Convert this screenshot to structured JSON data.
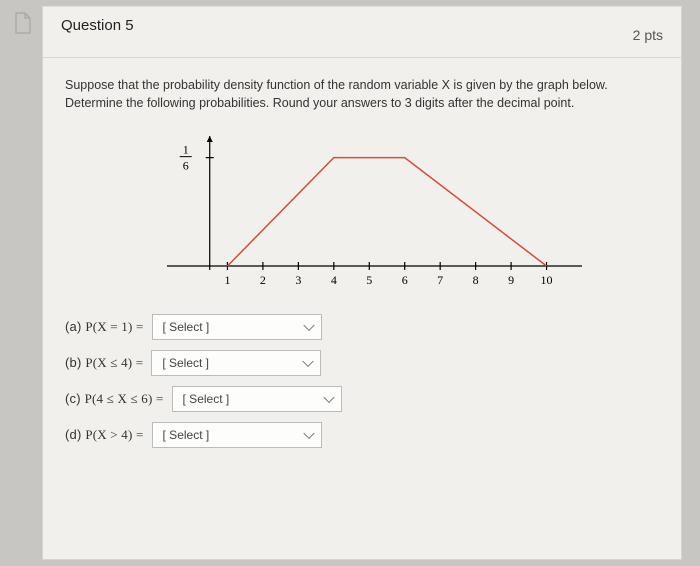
{
  "question": {
    "title": "Question 5",
    "points": "2 pts",
    "prompt_line1": "Suppose that the probability density function of the random variable X is given by the graph below.",
    "prompt_line2": "Determine the following probabilities. Round your answers to 3 digits after the decimal point."
  },
  "chart": {
    "type": "line",
    "background_color": "#f2f0ec",
    "axis_color": "#000000",
    "line_color": "#d94a3a",
    "line_width": 1.5,
    "tick_color": "#000000",
    "tick_fontsize": 12,
    "tick_font": "Times New Roman",
    "y_axis_label": "1/6",
    "x_ticks": [
      1,
      2,
      3,
      4,
      5,
      6,
      7,
      8,
      9,
      10
    ],
    "plot_x_range": [
      0,
      11
    ],
    "plot_y_range": [
      0,
      0.2
    ],
    "y_value_at_plateau": 0.1667,
    "pdf_points": [
      {
        "x": 1,
        "y": 0
      },
      {
        "x": 4,
        "y": 0.1667
      },
      {
        "x": 6,
        "y": 0.1667
      },
      {
        "x": 10,
        "y": 0
      }
    ]
  },
  "answers": {
    "placeholder": "[ Select ]",
    "a": {
      "label_prefix": "(a) ",
      "expr": "P(X = 1) ="
    },
    "b": {
      "label_prefix": "(b) ",
      "expr": "P(X ≤ 4) ="
    },
    "c": {
      "label_prefix": "(c) ",
      "expr": "P(4 ≤ X ≤ 6) ="
    },
    "d": {
      "label_prefix": "(d) ",
      "expr": "P(X > 4) ="
    }
  }
}
